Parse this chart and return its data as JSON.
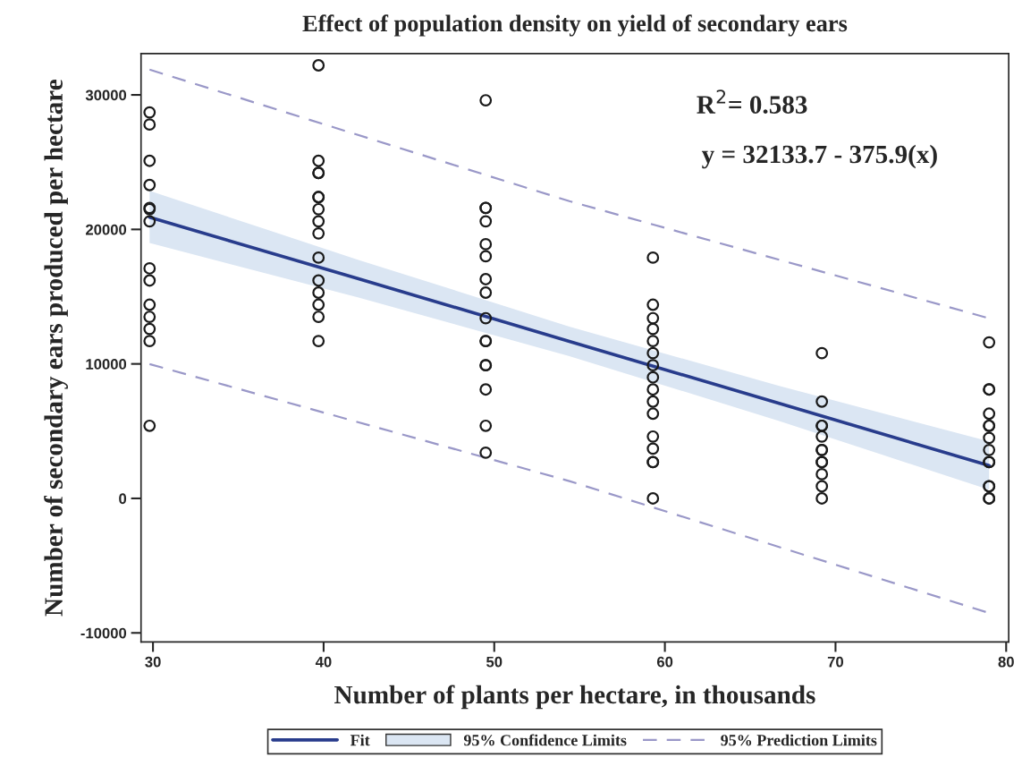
{
  "chart_data": {
    "type": "scatter",
    "title": "Effect of population density on yield of secondary ears",
    "xlabel": "Number of plants per hectare, in thousands",
    "ylabel": "Number of secondary ears produced per hectare",
    "xlim": [
      29.3,
      80.15
    ],
    "ylim": [
      -10670,
      33070
    ],
    "xticks": [
      30,
      40,
      50,
      60,
      70,
      80
    ],
    "yticks": [
      -10000,
      0,
      10000,
      20000,
      30000
    ],
    "grid": false,
    "legend": "bottom",
    "series": [
      {
        "type": "area",
        "name": "95% Confidence Limits",
        "color": "#dbe6f3"
      },
      {
        "type": "line",
        "name": "Fit",
        "color": "#283c8c",
        "line_style": "solid",
        "x": [
          29.8,
          42,
          54.4,
          66.7,
          79.0
        ],
        "values": [
          20900,
          16350,
          11680,
          7060,
          2440
        ],
        "lower": [
          18990,
          14950,
          10580,
          5760,
          640
        ],
        "upper": [
          22870,
          17750,
          12780,
          8360,
          4240
        ]
      },
      {
        "type": "line",
        "name": "95% Prediction Limits",
        "color": "#9a98c8",
        "line_style": "dashed",
        "x": [
          29.8,
          54.4,
          79.0
        ],
        "values": [
          31880,
          22100,
          13390
        ]
      },
      {
        "type": "line",
        "color": "#9a98c8",
        "line_style": "dashed",
        "x": [
          29.8,
          54.4,
          79.0
        ],
        "values": [
          9990,
          1290,
          -8520
        ]
      },
      {
        "color": "#1a1a1a",
        "marker": "circle",
        "x": [
          29.8,
          29.8,
          29.8,
          29.8,
          29.8,
          29.8,
          29.8,
          29.8,
          29.8,
          29.8,
          29.8,
          29.8,
          29.8,
          29.8,
          39.7,
          39.7,
          39.7,
          39.7,
          39.7,
          39.7,
          39.7,
          39.7,
          39.7,
          39.7,
          39.7,
          39.7,
          39.7,
          39.7,
          39.7,
          49.5,
          49.5,
          49.5,
          49.5,
          49.5,
          49.5,
          49.5,
          49.5,
          49.5,
          49.5,
          49.5,
          49.5,
          49.5,
          49.5,
          49.5,
          49.5,
          59.3,
          59.3,
          59.3,
          59.3,
          59.3,
          59.3,
          59.3,
          59.3,
          59.3,
          59.3,
          59.3,
          59.3,
          59.3,
          59.3,
          59.3,
          59.3,
          69.2,
          69.2,
          69.2,
          69.2,
          69.2,
          69.2,
          69.2,
          69.2,
          69.2,
          69.2,
          69.2,
          69.2,
          79.0,
          79.0,
          79.0,
          79.0,
          79.0,
          79.0,
          79.0,
          79.0,
          79.0,
          79.0,
          79.0,
          79.0,
          79.0,
          79.0
        ],
        "values": [
          28700,
          27800,
          25100,
          23300,
          21600,
          21500,
          20600,
          17100,
          16200,
          14400,
          13500,
          12600,
          11700,
          5400,
          32200,
          25100,
          24200,
          24200,
          22400,
          22400,
          21500,
          20600,
          19700,
          17900,
          16200,
          15300,
          14400,
          13500,
          11700,
          29600,
          21600,
          21600,
          20600,
          18900,
          18000,
          16300,
          15300,
          13400,
          11700,
          11700,
          9900,
          9900,
          8100,
          5400,
          3400,
          17900,
          14400,
          13400,
          12600,
          11700,
          10800,
          9900,
          9000,
          8100,
          7200,
          6300,
          4600,
          3700,
          2700,
          2700,
          0,
          10800,
          7200,
          5400,
          5400,
          4600,
          3600,
          3600,
          2700,
          2700,
          1800,
          900,
          0,
          11600,
          8100,
          8100,
          6300,
          5400,
          5400,
          4500,
          3600,
          2700,
          2700,
          900,
          900,
          0,
          0
        ]
      }
    ],
    "annotations": [
      "R$^{2}$= 0.583",
      "y = 32133.7 - 375.9(x)"
    ]
  }
}
